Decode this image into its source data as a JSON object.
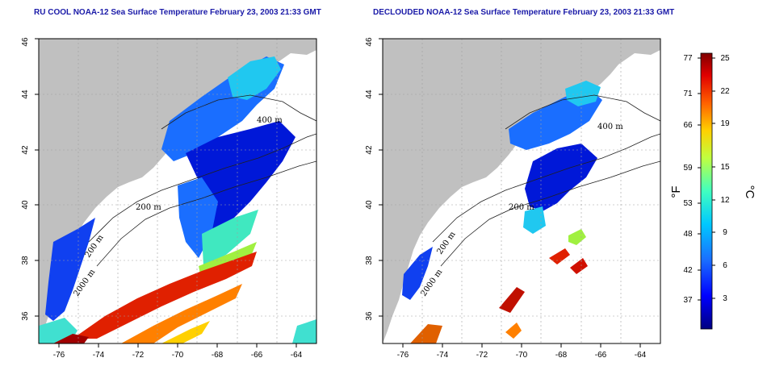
{
  "left_panel": {
    "title": "RU COOL NOAA-12 Sea Surface Temperature February 23, 2003 21:33 GMT",
    "contour_labels": [
      "200 m",
      "200 m",
      "2000 m",
      "400 m"
    ]
  },
  "right_panel": {
    "title": "DECLOUDED NOAA-12 Sea Surface Temperature February 23, 2003 21:33 GMT",
    "contour_labels": [
      "200 m",
      "200 m",
      "2000 m",
      "400 m"
    ]
  },
  "axes": {
    "x_ticks": [
      "-76",
      "-74",
      "-72",
      "-70",
      "-68",
      "-66",
      "-64"
    ],
    "y_ticks": [
      "36",
      "38",
      "40",
      "42",
      "44",
      "46"
    ],
    "x_range": [
      -77,
      -63
    ],
    "y_range": [
      35,
      46
    ]
  },
  "colorbar": {
    "fahrenheit_ticks": [
      "77",
      "71",
      "66",
      "59",
      "53",
      "48",
      "42",
      "37"
    ],
    "celsius_ticks": [
      "25",
      "22",
      "19",
      "15",
      "12",
      "9",
      "6",
      "3"
    ],
    "fahrenheit_unit": "°F",
    "celsius_unit": "°C",
    "range_celsius": [
      0,
      25
    ]
  },
  "colors": {
    "land": "#c0c0c0",
    "water_background": "#ffffff",
    "title": "#1a1aa8",
    "grid": "#a0a0a0"
  }
}
